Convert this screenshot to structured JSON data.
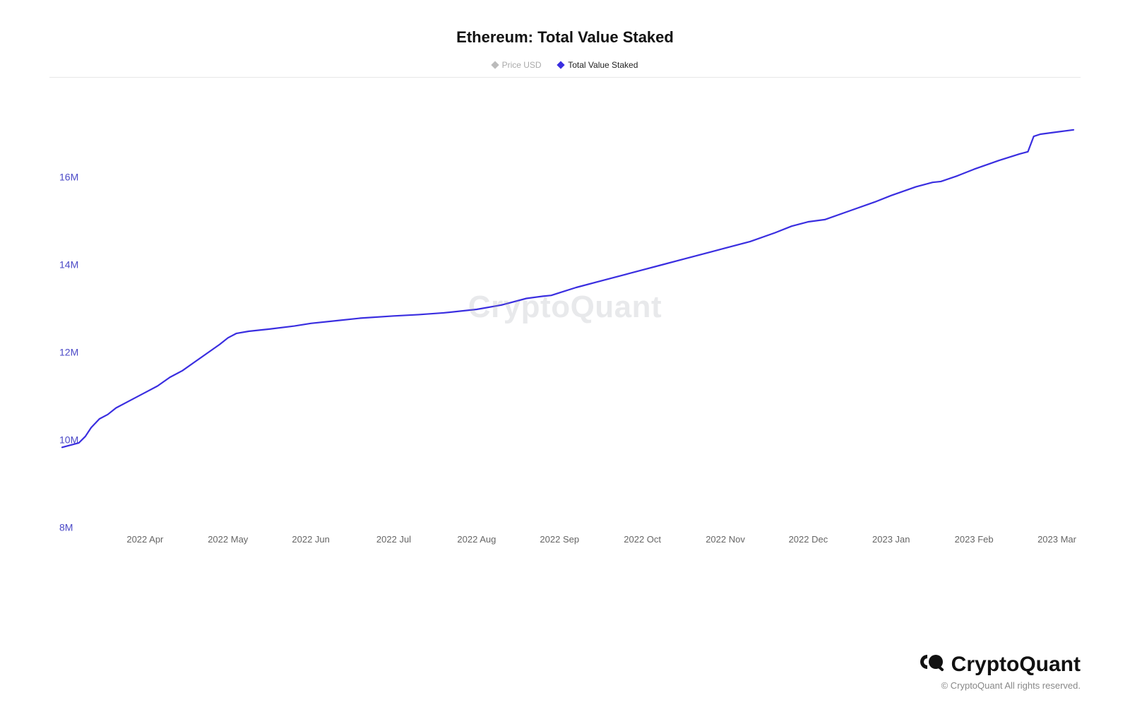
{
  "chart": {
    "type": "line",
    "title": "Ethereum: Total Value Staked",
    "title_fontsize": 22,
    "background_color": "#ffffff",
    "rule_color": "#e8e8e8",
    "watermark": "CryptoQuant",
    "legend": {
      "items": [
        {
          "label": "Price USD",
          "active": false,
          "color": "#bbbbbb"
        },
        {
          "label": "Total Value Staked",
          "active": true,
          "color": "#3a2ee0"
        }
      ]
    },
    "y_axis": {
      "min": 8000000,
      "max": 18000000,
      "ticks": [
        {
          "value": 8000000,
          "label": "8M"
        },
        {
          "value": 10000000,
          "label": "10M"
        },
        {
          "value": 12000000,
          "label": "12M"
        },
        {
          "value": 14000000,
          "label": "14M"
        },
        {
          "value": 16000000,
          "label": "16M"
        }
      ],
      "tick_color": "#4b49c7",
      "tick_fontsize": 14
    },
    "x_axis": {
      "min": 0,
      "max": 12.2,
      "ticks": [
        {
          "value": 1,
          "label": "2022 Apr"
        },
        {
          "value": 2,
          "label": "2022 May"
        },
        {
          "value": 3,
          "label": "2022 Jun"
        },
        {
          "value": 4,
          "label": "2022 Jul"
        },
        {
          "value": 5,
          "label": "2022 Aug"
        },
        {
          "value": 6,
          "label": "2022 Sep"
        },
        {
          "value": 7,
          "label": "2022 Oct"
        },
        {
          "value": 8,
          "label": "2022 Nov"
        },
        {
          "value": 9,
          "label": "2022 Dec"
        },
        {
          "value": 10,
          "label": "2023 Jan"
        },
        {
          "value": 11,
          "label": "2023 Feb"
        },
        {
          "value": 12,
          "label": "2023 Mar"
        }
      ],
      "tick_color": "#666666",
      "tick_fontsize": 13
    },
    "series": [
      {
        "name": "Total Value Staked",
        "color": "#3a2ee0",
        "line_width": 2.2,
        "points": [
          [
            0.0,
            9850000
          ],
          [
            0.1,
            9900000
          ],
          [
            0.2,
            9950000
          ],
          [
            0.28,
            10100000
          ],
          [
            0.35,
            10300000
          ],
          [
            0.45,
            10500000
          ],
          [
            0.55,
            10600000
          ],
          [
            0.65,
            10750000
          ],
          [
            0.8,
            10900000
          ],
          [
            1.0,
            11100000
          ],
          [
            1.15,
            11250000
          ],
          [
            1.3,
            11450000
          ],
          [
            1.45,
            11600000
          ],
          [
            1.6,
            11800000
          ],
          [
            1.75,
            12000000
          ],
          [
            1.9,
            12200000
          ],
          [
            2.0,
            12350000
          ],
          [
            2.1,
            12450000
          ],
          [
            2.25,
            12500000
          ],
          [
            2.5,
            12550000
          ],
          [
            2.8,
            12620000
          ],
          [
            3.0,
            12680000
          ],
          [
            3.3,
            12740000
          ],
          [
            3.6,
            12800000
          ],
          [
            4.0,
            12850000
          ],
          [
            4.3,
            12880000
          ],
          [
            4.6,
            12920000
          ],
          [
            5.0,
            13000000
          ],
          [
            5.3,
            13100000
          ],
          [
            5.6,
            13250000
          ],
          [
            5.8,
            13300000
          ],
          [
            5.9,
            13320000
          ],
          [
            6.0,
            13380000
          ],
          [
            6.2,
            13500000
          ],
          [
            6.5,
            13650000
          ],
          [
            6.8,
            13800000
          ],
          [
            7.0,
            13900000
          ],
          [
            7.2,
            14000000
          ],
          [
            7.5,
            14150000
          ],
          [
            7.8,
            14300000
          ],
          [
            8.0,
            14400000
          ],
          [
            8.3,
            14550000
          ],
          [
            8.6,
            14750000
          ],
          [
            8.8,
            14900000
          ],
          [
            9.0,
            15000000
          ],
          [
            9.2,
            15050000
          ],
          [
            9.5,
            15250000
          ],
          [
            9.8,
            15450000
          ],
          [
            10.0,
            15600000
          ],
          [
            10.3,
            15800000
          ],
          [
            10.5,
            15900000
          ],
          [
            10.6,
            15920000
          ],
          [
            10.8,
            16050000
          ],
          [
            11.0,
            16200000
          ],
          [
            11.3,
            16400000
          ],
          [
            11.55,
            16550000
          ],
          [
            11.65,
            16600000
          ],
          [
            11.72,
            16950000
          ],
          [
            11.8,
            17000000
          ],
          [
            12.0,
            17050000
          ],
          [
            12.2,
            17100000
          ]
        ]
      }
    ]
  },
  "footer": {
    "brand": "CryptoQuant",
    "copyright": "© CryptoQuant All rights reserved."
  }
}
